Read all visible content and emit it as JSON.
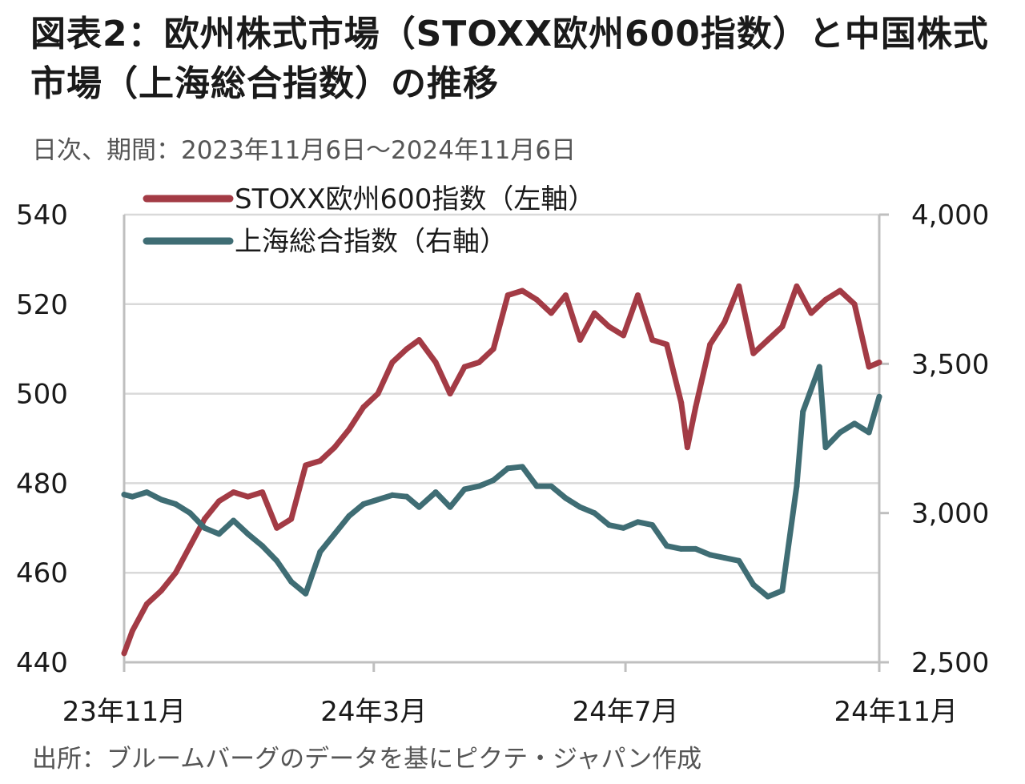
{
  "title": "図表2：欧州株式市場（STOXX欧州600指数）と中国株式市場（上海総合指数）の推移",
  "subtitle": "日次、期間：2023年11月6日～2024年11月6日",
  "source": "出所：ブルームバーグのデータを基にピクテ・ジャパン作成",
  "colors": {
    "stoxx": "#a33b45",
    "shanghai": "#3f6d74",
    "grid": "#d9d9d9",
    "axis": "#bfbfbf"
  },
  "chart_data": {
    "type": "line",
    "x_tick_labels": [
      "23年11月",
      "24年3月",
      "24年7月",
      "24年11月"
    ],
    "x_ticks": [
      "2023-11",
      "2024-03",
      "2024-07",
      "2024-11"
    ],
    "x_range": [
      "2023-11-06",
      "2024-11-06"
    ],
    "y_left": {
      "ticks": [
        440,
        460,
        480,
        500,
        520,
        540
      ],
      "range": [
        440,
        540
      ]
    },
    "y_right": {
      "ticks": [
        "2,500",
        "3,000",
        "3,500",
        "4,000"
      ],
      "range": [
        2500,
        4000
      ]
    },
    "grid": true,
    "legend_position": "top-left",
    "series": [
      {
        "name": "STOXX欧州600指数（左軸）",
        "axis": "left",
        "color": "#a33b45",
        "x": [
          "2023-11-06",
          "2023-11-10",
          "2023-11-17",
          "2023-11-24",
          "2023-12-01",
          "2023-12-08",
          "2023-12-15",
          "2023-12-22",
          "2023-12-29",
          "2024-01-05",
          "2024-01-12",
          "2024-01-19",
          "2024-01-26",
          "2024-02-02",
          "2024-02-09",
          "2024-02-16",
          "2024-02-23",
          "2024-03-01",
          "2024-03-08",
          "2024-03-15",
          "2024-03-22",
          "2024-03-28",
          "2024-04-05",
          "2024-04-12",
          "2024-04-19",
          "2024-04-26",
          "2024-05-03",
          "2024-05-10",
          "2024-05-17",
          "2024-05-24",
          "2024-05-31",
          "2024-06-07",
          "2024-06-14",
          "2024-06-21",
          "2024-06-28",
          "2024-07-05",
          "2024-07-12",
          "2024-07-19",
          "2024-07-26",
          "2024-08-02",
          "2024-08-05",
          "2024-08-09",
          "2024-08-16",
          "2024-08-23",
          "2024-08-30",
          "2024-09-06",
          "2024-09-13",
          "2024-09-20",
          "2024-09-27",
          "2024-10-04",
          "2024-10-11",
          "2024-10-18",
          "2024-10-25",
          "2024-11-01",
          "2024-11-06"
        ],
        "values": [
          442,
          447,
          453,
          456,
          460,
          466,
          472,
          476,
          478,
          477,
          478,
          470,
          472,
          484,
          485,
          488,
          492,
          497,
          500,
          507,
          510,
          512,
          507,
          500,
          506,
          507,
          510,
          522,
          523,
          521,
          518,
          522,
          512,
          518,
          515,
          513,
          522,
          512,
          511,
          498,
          488,
          497,
          511,
          516,
          524,
          509,
          512,
          515,
          524,
          518,
          521,
          523,
          520,
          506,
          507
        ]
      },
      {
        "name": "上海総合指数（右軸）",
        "axis": "right",
        "color": "#3f6d74",
        "x": [
          "2023-11-06",
          "2023-11-10",
          "2023-11-17",
          "2023-11-24",
          "2023-12-01",
          "2023-12-08",
          "2023-12-15",
          "2023-12-22",
          "2023-12-29",
          "2024-01-05",
          "2024-01-12",
          "2024-01-19",
          "2024-01-26",
          "2024-02-02",
          "2024-02-09",
          "2024-02-16",
          "2024-02-23",
          "2024-03-01",
          "2024-03-08",
          "2024-03-15",
          "2024-03-22",
          "2024-03-28",
          "2024-04-05",
          "2024-04-12",
          "2024-04-19",
          "2024-04-26",
          "2024-05-03",
          "2024-05-10",
          "2024-05-17",
          "2024-05-24",
          "2024-05-31",
          "2024-06-07",
          "2024-06-14",
          "2024-06-21",
          "2024-06-28",
          "2024-07-05",
          "2024-07-12",
          "2024-07-19",
          "2024-07-26",
          "2024-08-02",
          "2024-08-09",
          "2024-08-16",
          "2024-08-23",
          "2024-08-30",
          "2024-09-06",
          "2024-09-13",
          "2024-09-20",
          "2024-09-27",
          "2024-09-30",
          "2024-10-08",
          "2024-10-11",
          "2024-10-18",
          "2024-10-25",
          "2024-11-01",
          "2024-11-06"
        ],
        "values": [
          3062,
          3055,
          3070,
          3045,
          3030,
          3000,
          2950,
          2930,
          2975,
          2930,
          2890,
          2840,
          2770,
          2730,
          2870,
          2930,
          2990,
          3030,
          3045,
          3060,
          3055,
          3020,
          3070,
          3020,
          3080,
          3090,
          3110,
          3150,
          3155,
          3090,
          3090,
          3050,
          3020,
          3000,
          2960,
          2950,
          2970,
          2960,
          2890,
          2880,
          2880,
          2860,
          2850,
          2840,
          2760,
          2720,
          2740,
          3090,
          3340,
          3490,
          3220,
          3270,
          3300,
          3270,
          3390
        ]
      }
    ]
  }
}
